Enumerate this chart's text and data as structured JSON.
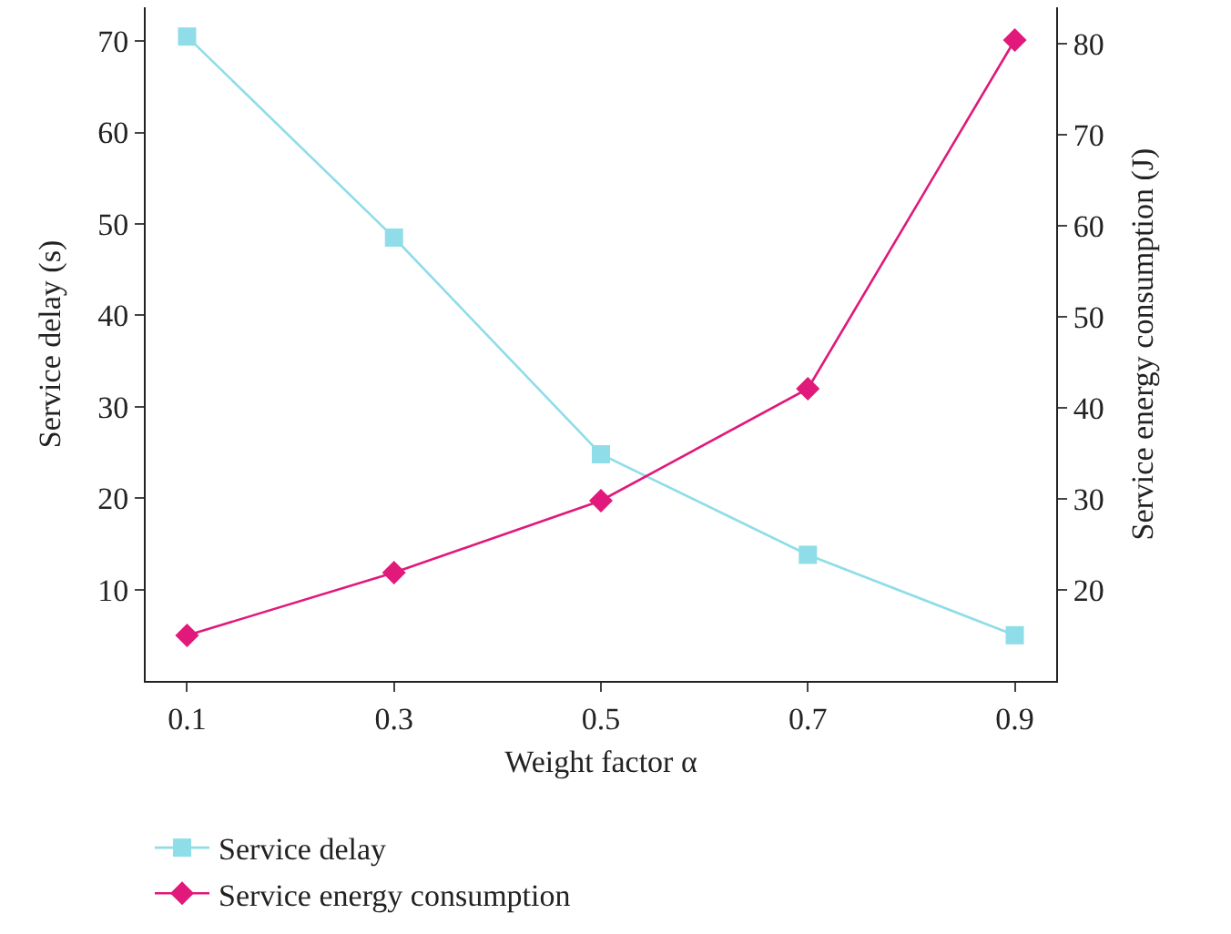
{
  "chart_data": {
    "type": "line",
    "xlabel": "Weight factor α",
    "ylabel": "Service delay (s)",
    "y2label": "Service energy consumption (J)",
    "x": [
      0.1,
      0.3,
      0.5,
      0.7,
      0.9
    ],
    "series": [
      {
        "name": "Service delay",
        "color": "#8fdde8",
        "marker": "square",
        "values": [
          70.5,
          48.5,
          24.8,
          13.8,
          5
        ]
      },
      {
        "name": "Service energy consumption",
        "color": "#e0197a",
        "marker": "diamond",
        "axis": "y2",
        "values": [
          15,
          21.9,
          29.8,
          42.1,
          80.4
        ]
      }
    ],
    "xlim": [
      0.06,
      0.94
    ],
    "xticks": [
      0.1,
      0.3,
      0.5,
      0.7,
      0.9
    ],
    "ylim": [
      0,
      73.7
    ],
    "yticks": [
      10,
      20,
      30,
      40,
      50,
      60,
      70
    ],
    "y2lim": [
      10,
      84
    ],
    "y2ticks": [
      20,
      30,
      40,
      50,
      60,
      70,
      80
    ],
    "legend": "bottom",
    "line_style": "solid"
  }
}
